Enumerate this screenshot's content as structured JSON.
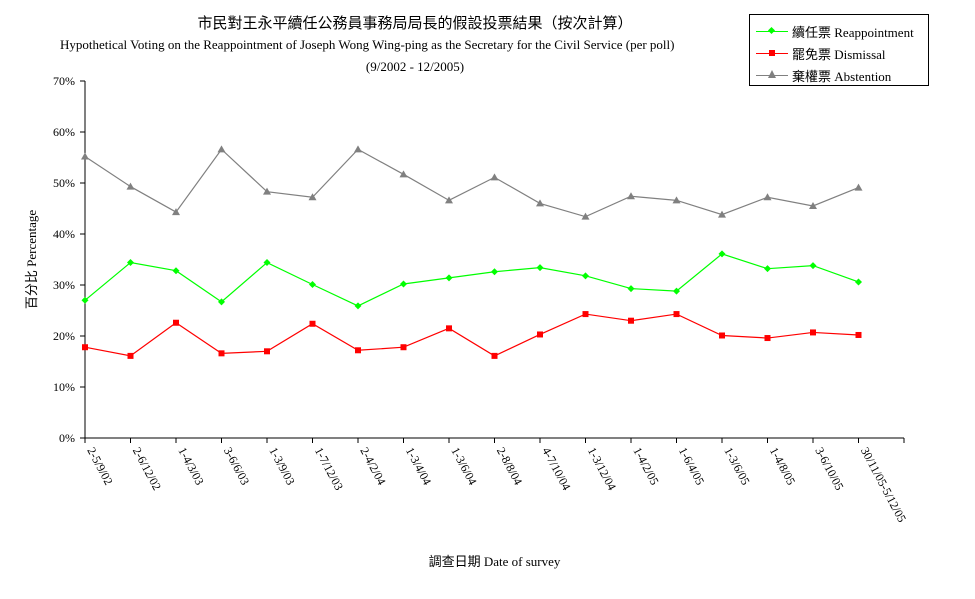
{
  "chart_data": {
    "type": "line",
    "title": "市民對王永平續任公務員事務局局長的假設投票結果（按次計算）",
    "subtitle": "Hypothetical Voting on the Reappointment of Joseph Wong Wing-ping as the Secretary for the Civil Service (per poll)",
    "period": "(9/2002 - 12/2005)",
    "xlabel": "調查日期 Date of survey",
    "ylabel": "百分比 Percentage",
    "ylim": [
      0,
      70
    ],
    "yticks": [
      "0%",
      "10%",
      "20%",
      "30%",
      "40%",
      "50%",
      "60%",
      "70%"
    ],
    "categories": [
      "2-5/9/02",
      "2-6/12/02",
      "1-4/3/03",
      "3-6/6/03",
      "1-3/9/03",
      "1-7/12/03",
      "2-4/2/04",
      "1-3/4/04",
      "1-3/6/04",
      "2-8/8/04",
      "4-7/10/04",
      "1-3/12/04",
      "1-4/2/05",
      "1-6/4/05",
      "1-3/6/05",
      "1-4/8/05",
      "3-6/10/05",
      "30/11/05-5/12/05"
    ],
    "series": [
      {
        "name": "續任票 Reappointment",
        "color": "#00ff00",
        "marker": "diamond",
        "values": [
          27.0,
          34.4,
          32.8,
          26.7,
          34.4,
          30.1,
          25.9,
          30.2,
          31.4,
          32.6,
          33.4,
          31.8,
          29.3,
          28.8,
          36.1,
          33.2,
          33.8,
          30.6
        ]
      },
      {
        "name": "罷免票 Dismissal",
        "color": "#ff0000",
        "marker": "square",
        "values": [
          17.8,
          16.1,
          22.6,
          16.6,
          17.0,
          22.4,
          17.2,
          17.8,
          21.5,
          16.1,
          20.3,
          24.3,
          23.0,
          24.3,
          20.1,
          19.6,
          20.7,
          20.2
        ]
      },
      {
        "name": "棄權票 Abstention",
        "color": "#808080",
        "marker": "triangle",
        "values": [
          55.2,
          49.3,
          44.3,
          56.6,
          48.3,
          47.2,
          56.6,
          51.7,
          46.6,
          51.1,
          46.0,
          43.4,
          47.4,
          46.6,
          43.8,
          47.2,
          45.5,
          49.1
        ]
      }
    ],
    "legend_position": "top-right",
    "grid": false
  }
}
